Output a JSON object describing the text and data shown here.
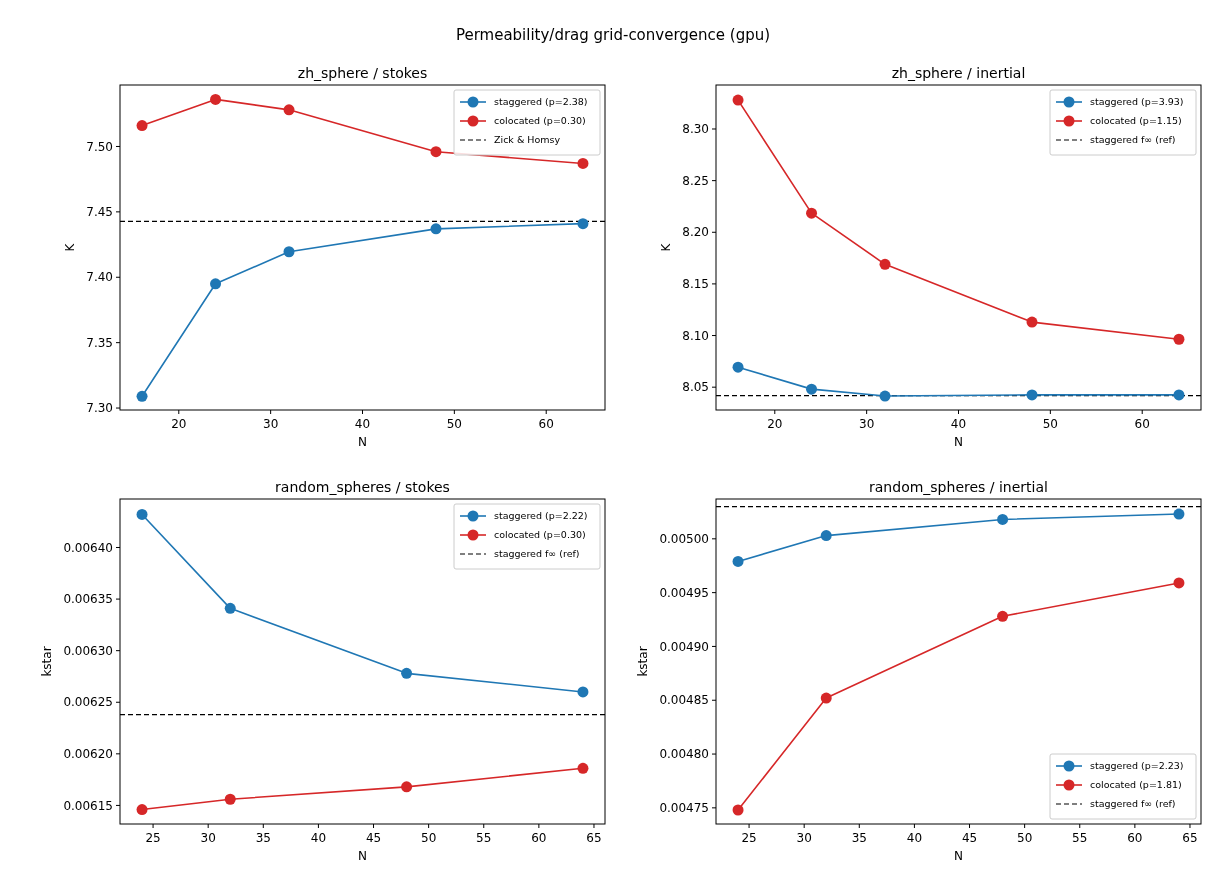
{
  "chart_data": [
    {
      "type": "line",
      "title": "zh_sphere / stokes",
      "xlabel": "N",
      "ylabel": "K",
      "annotations": [
        "Permeability/drag grid-convergence (gpu)"
      ],
      "x": [
        16,
        24,
        32,
        48,
        64
      ],
      "xlim": [
        13.6,
        66.4
      ],
      "xticks": [
        20,
        30,
        40,
        50,
        60
      ],
      "ylim": [
        7.2985,
        7.547
      ],
      "yticks": [
        {
          "value": 7.3,
          "label": "7.30"
        },
        {
          "value": 7.35,
          "label": "7.35"
        },
        {
          "value": 7.4,
          "label": "7.40"
        },
        {
          "value": 7.45,
          "label": "7.45"
        },
        {
          "value": 7.5,
          "label": "7.50"
        }
      ],
      "marker": "circle",
      "line_style": "solid",
      "legend": "top right",
      "grid": false,
      "series": [
        {
          "name": "staggered (p=2.38)",
          "color": "#1f77b4",
          "values": [
            7.309,
            7.395,
            7.4195,
            7.437,
            7.441
          ]
        },
        {
          "name": "colocated (p=0.30)",
          "color": "#d62728",
          "values": [
            7.516,
            7.536,
            7.528,
            7.496,
            7.487
          ]
        }
      ],
      "ref_lines": [
        {
          "axis": "y",
          "value": 7.4427,
          "label": "Zick & Homsy",
          "color": "#000000",
          "line_style": "dashed"
        }
      ]
    },
    {
      "type": "line",
      "title": "zh_sphere / inertial",
      "xlabel": "N",
      "ylabel": "K",
      "x": [
        16,
        24,
        32,
        48,
        64
      ],
      "xlim": [
        13.6,
        66.4
      ],
      "xticks": [
        20,
        30,
        40,
        50,
        60
      ],
      "ylim": [
        8.0279,
        8.3426
      ],
      "yticks": [
        {
          "value": 8.05,
          "label": "8.05"
        },
        {
          "value": 8.1,
          "label": "8.10"
        },
        {
          "value": 8.15,
          "label": "8.15"
        },
        {
          "value": 8.2,
          "label": "8.20"
        },
        {
          "value": 8.25,
          "label": "8.25"
        },
        {
          "value": 8.3,
          "label": "8.30"
        }
      ],
      "marker": "circle",
      "line_style": "solid",
      "legend": "top right",
      "grid": false,
      "series": [
        {
          "name": "staggered (p=3.93)",
          "color": "#1f77b4",
          "values": [
            8.0694,
            8.0481,
            8.0414,
            8.0425,
            8.0425
          ]
        },
        {
          "name": "colocated (p=1.15)",
          "color": "#d62728",
          "values": [
            8.328,
            8.2185,
            8.169,
            8.113,
            8.0964
          ]
        }
      ],
      "ref_lines": [
        {
          "axis": "y",
          "value": 8.0418,
          "label": "staggered f∞ (ref)",
          "color": "#000000",
          "line_style": "dashed"
        }
      ]
    },
    {
      "type": "line",
      "title": "random_spheres / stokes",
      "xlabel": "N",
      "ylabel": "kstar",
      "x": [
        24,
        32,
        48,
        64
      ],
      "xlim": [
        22,
        66
      ],
      "xticks": [
        25,
        30,
        35,
        40,
        45,
        50,
        55,
        60,
        65
      ],
      "ylim": [
        0.006132,
        0.006447
      ],
      "yticks": [
        {
          "value": 0.00615,
          "label": "0.00615"
        },
        {
          "value": 0.0062,
          "label": "0.00620"
        },
        {
          "value": 0.00625,
          "label": "0.00625"
        },
        {
          "value": 0.0063,
          "label": "0.00630"
        },
        {
          "value": 0.00635,
          "label": "0.00635"
        },
        {
          "value": 0.0064,
          "label": "0.00640"
        }
      ],
      "marker": "circle",
      "line_style": "solid",
      "legend": "top right",
      "grid": false,
      "series": [
        {
          "name": "staggered (p=2.22)",
          "color": "#1f77b4",
          "values": [
            0.006432,
            0.006341,
            0.006278,
            0.00626
          ]
        },
        {
          "name": "colocated (p=0.30)",
          "color": "#d62728",
          "values": [
            0.006146,
            0.006156,
            0.006168,
            0.006186
          ]
        }
      ],
      "ref_lines": [
        {
          "axis": "y",
          "value": 0.006238,
          "label": "staggered f∞ (ref)",
          "color": "#000000",
          "line_style": "dashed"
        }
      ]
    },
    {
      "type": "line",
      "title": "random_spheres / inertial",
      "xlabel": "N",
      "ylabel": "kstar",
      "x": [
        24,
        32,
        48,
        64
      ],
      "xlim": [
        22,
        66
      ],
      "xticks": [
        25,
        30,
        35,
        40,
        45,
        50,
        55,
        60,
        65
      ],
      "ylim": [
        0.004735,
        0.005037
      ],
      "yticks": [
        {
          "value": 0.00475,
          "label": "0.00475"
        },
        {
          "value": 0.0048,
          "label": "0.00480"
        },
        {
          "value": 0.00485,
          "label": "0.00485"
        },
        {
          "value": 0.0049,
          "label": "0.00490"
        },
        {
          "value": 0.00495,
          "label": "0.00495"
        },
        {
          "value": 0.005,
          "label": "0.00500"
        }
      ],
      "marker": "circle",
      "line_style": "solid",
      "legend": "bottom right",
      "grid": false,
      "series": [
        {
          "name": "staggered (p=2.23)",
          "color": "#1f77b4",
          "values": [
            0.004979,
            0.005003,
            0.005018,
            0.005023
          ]
        },
        {
          "name": "colocated (p=1.81)",
          "color": "#d62728",
          "values": [
            0.004748,
            0.004852,
            0.004928,
            0.004959
          ]
        }
      ],
      "ref_lines": [
        {
          "axis": "y",
          "value": 0.00503,
          "label": "staggered f∞ (ref)",
          "color": "#000000",
          "line_style": "dashed"
        }
      ]
    }
  ]
}
